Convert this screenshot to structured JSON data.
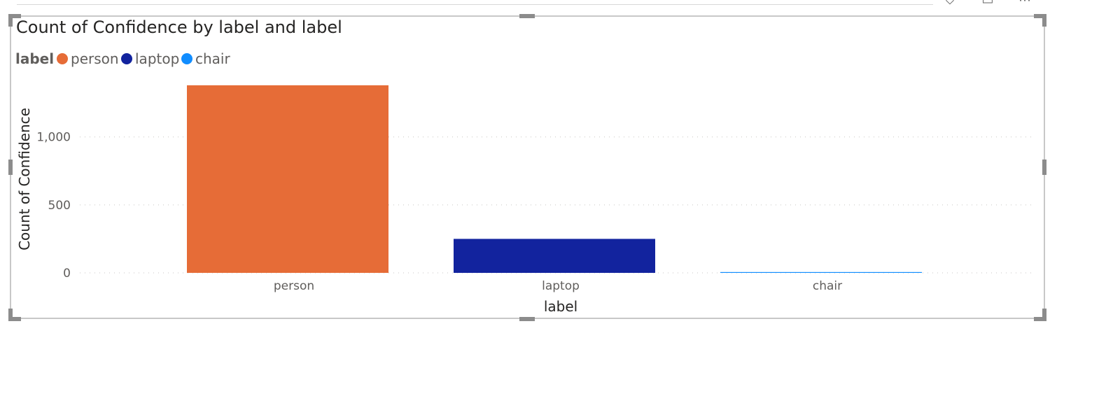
{
  "chart_data": {
    "type": "bar",
    "title": "Count of Confidence by label and label",
    "legend": {
      "title": "label",
      "entries": [
        {
          "label": "person",
          "color": "#E66C37"
        },
        {
          "label": "laptop",
          "color": "#12239E"
        },
        {
          "label": "chair",
          "color": "#118DFF"
        }
      ],
      "placement": "top-left"
    },
    "categories": [
      "person",
      "laptop",
      "chair"
    ],
    "values": [
      1380,
      250,
      6
    ],
    "colors": [
      "#E66C37",
      "#12239E",
      "#118DFF"
    ],
    "xlabel": "label",
    "ylabel": "Count of Confidence",
    "ylim": [
      0,
      1400
    ],
    "yticks": [
      {
        "value": 0,
        "label": "0"
      },
      {
        "value": 500,
        "label": "500"
      },
      {
        "value": 1000,
        "label": "1,000"
      }
    ],
    "grid": true
  },
  "ui": {
    "icons": [
      "filter-icon",
      "focus-mode-icon",
      "more-options-icon"
    ]
  }
}
